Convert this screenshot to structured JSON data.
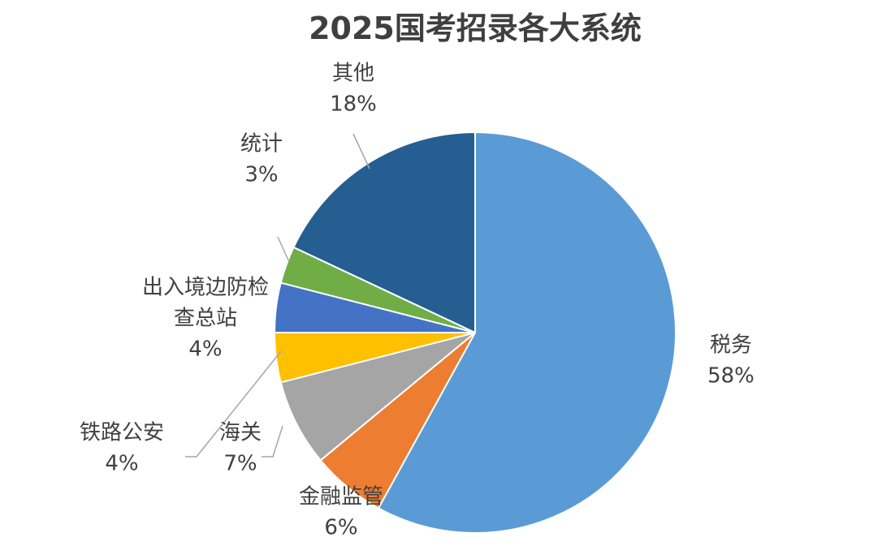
{
  "chart_data": {
    "type": "pie",
    "title": "2025国考招录各大系统",
    "slices": [
      {
        "label": "税务",
        "lines": [
          "税务"
        ],
        "value": 58,
        "value_label": "58%",
        "color": "#5b9bd5"
      },
      {
        "label": "金融监管",
        "lines": [
          "金融监管"
        ],
        "value": 6,
        "value_label": "6%",
        "color": "#ed7d31"
      },
      {
        "label": "海关",
        "lines": [
          "海关"
        ],
        "value": 7,
        "value_label": "7%",
        "color": "#a5a5a5"
      },
      {
        "label": "铁路公安",
        "lines": [
          "铁路公安"
        ],
        "value": 4,
        "value_label": "4%",
        "color": "#ffc000"
      },
      {
        "label": "出入境边防检查总站",
        "lines": [
          "出入境边防检",
          "查总站"
        ],
        "value": 4,
        "value_label": "4%",
        "color": "#4472c4"
      },
      {
        "label": "统计",
        "lines": [
          "统计"
        ],
        "value": 3,
        "value_label": "3%",
        "color": "#70ad47"
      },
      {
        "label": "其他",
        "lines": [
          "其他"
        ],
        "value": 18,
        "value_label": "18%",
        "color": "#255e91"
      }
    ],
    "legend": "none",
    "label_style": "outside with leader lines"
  }
}
